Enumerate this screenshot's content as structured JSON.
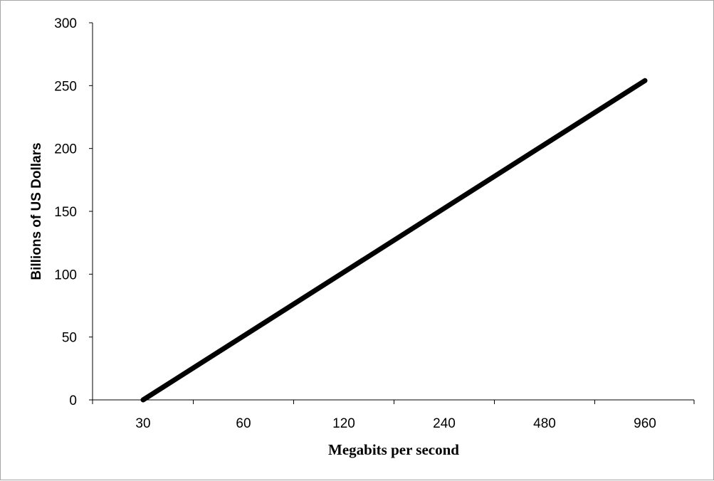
{
  "chart_data": {
    "type": "line",
    "title": "",
    "xlabel": "Megabits per second",
    "ylabel": "Billions of US Dollars",
    "x_scale": "log2",
    "categories": [
      "30",
      "60",
      "120",
      "240",
      "480",
      "960"
    ],
    "series": [
      {
        "name": "",
        "x": [
          30,
          960
        ],
        "values": [
          0,
          254
        ]
      }
    ],
    "ylim": [
      0,
      300
    ],
    "yticks": [
      0,
      50,
      100,
      150,
      200,
      250,
      300
    ],
    "grid": false,
    "legend": "none",
    "line_color": "#000000"
  }
}
